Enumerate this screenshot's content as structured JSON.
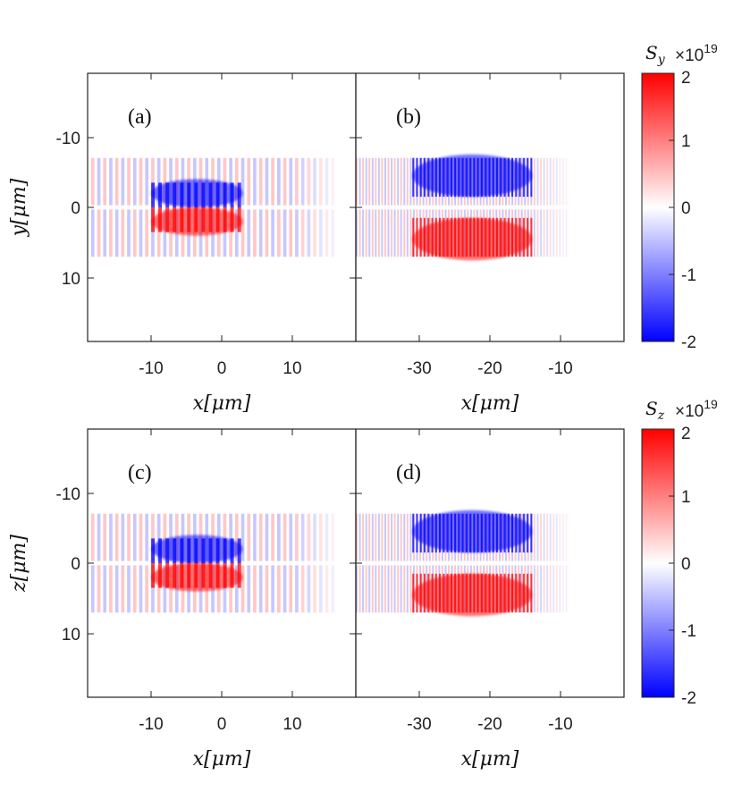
{
  "chart_data": [
    {
      "type": "heatmap",
      "panel": "(a)",
      "xlabel": "x[μm]",
      "ylabel": "y[μm]",
      "xlim": [
        -19,
        19
      ],
      "ylim": [
        -19,
        19
      ],
      "xticks": [
        "-10",
        "0",
        "10"
      ],
      "yticks": [
        "-10",
        "0",
        "10"
      ],
      "color_quantity": "S_y",
      "features": {
        "beam_halfwidth": 7,
        "stripe_period": 1.7,
        "core_x": [
          -10,
          3
        ],
        "core_y": [
          0.5,
          3.5
        ],
        "upper_color": "blue",
        "lower_color": "red"
      }
    },
    {
      "type": "heatmap",
      "panel": "(b)",
      "xlabel": "x[μm]",
      "ylabel": "",
      "xlim": [
        -38,
        0
      ],
      "ylim": [
        -19,
        19
      ],
      "xticks": [
        "-30",
        "-20",
        "-10"
      ],
      "yticks": [],
      "color_quantity": "S_y",
      "features": {
        "beam_halfwidth": 7,
        "stripe_period": 0.9,
        "core_x": [
          -30,
          -13
        ],
        "core_y": [
          2,
          7
        ],
        "upper_color": "blue",
        "lower_color": "red"
      }
    },
    {
      "type": "heatmap",
      "panel": "(c)",
      "xlabel": "x[μm]",
      "ylabel": "z[μm]",
      "xlim": [
        -19,
        19
      ],
      "ylim": [
        -19,
        19
      ],
      "xticks": [
        "-10",
        "0",
        "10"
      ],
      "yticks": [
        "-10",
        "0",
        "10"
      ],
      "color_quantity": "S_z",
      "features": {
        "beam_halfwidth": 7,
        "stripe_period": 1.7,
        "core_x": [
          -10,
          3
        ],
        "core_y": [
          0.5,
          3.5
        ],
        "upper_color": "blue",
        "lower_color": "red"
      }
    },
    {
      "type": "heatmap",
      "panel": "(d)",
      "xlabel": "x[μm]",
      "ylabel": "",
      "xlim": [
        -38,
        0
      ],
      "ylim": [
        -19,
        19
      ],
      "xticks": [
        "-30",
        "-20",
        "-10"
      ],
      "yticks": [],
      "color_quantity": "S_z",
      "features": {
        "beam_halfwidth": 7,
        "stripe_period": 0.9,
        "core_x": [
          -30,
          -13
        ],
        "core_y": [
          2,
          7
        ],
        "upper_color": "blue",
        "lower_color": "red"
      }
    }
  ],
  "colorbars": [
    {
      "title": "S_y",
      "title_main": "S",
      "title_sub": "y",
      "multiplier": "×10",
      "exponent": "19",
      "ticks": [
        "2",
        "1",
        "0",
        "-1",
        "-2"
      ],
      "range": [
        -2,
        2
      ]
    },
    {
      "title": "S_z",
      "title_main": "S",
      "title_sub": "z",
      "multiplier": "×10",
      "exponent": "19",
      "ticks": [
        "2",
        "1",
        "0",
        "-1",
        "-2"
      ],
      "range": [
        -2,
        2
      ]
    }
  ],
  "colors": {
    "positive": "#ff0000",
    "zero": "#ffffff",
    "negative": "#0000ff",
    "axis": "#222222"
  },
  "labels": {
    "a": "(a)",
    "b": "(b)",
    "c": "(c)",
    "d": "(d)",
    "x": "x[μm]",
    "y": "y[μm]",
    "z": "z[μm]"
  },
  "ticks": {
    "left_x": [
      "-10",
      "0",
      "10"
    ],
    "right_x": [
      "-30",
      "-20",
      "-10"
    ],
    "y": [
      "-10",
      "0",
      "10"
    ]
  }
}
